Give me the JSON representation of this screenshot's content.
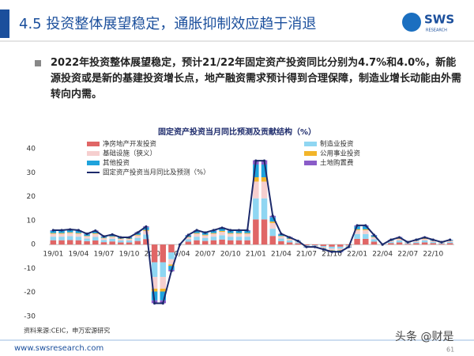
{
  "header": {
    "title": "4.5 投资整体展望稳定，通胀抑制效应趋于消退",
    "logo": "SWS",
    "logo_sub": "RESEARCH"
  },
  "bullet": "2022年投资整体展望稳定，预计21/22年固定资产投资同比分别为4.7%和4.0%，新能源投资或是新的基建投资增长点，地产融资需求预计得到合理保障，制造业增长动能由外需转向内需。",
  "source": "资料来源:CEIC，申万宏源研究",
  "footer": {
    "url": "www.swsresearch.com",
    "page": "61",
    "watermark": "头条 @财是"
  },
  "chart_data": {
    "type": "bar",
    "stacked": true,
    "title": "固定资产投资当月同比预测及贡献结构（%）",
    "categories": [
      "19/01",
      null,
      null,
      "19/04",
      null,
      null,
      "19/07",
      null,
      null,
      "19/10",
      null,
      null,
      "20/01",
      null,
      null,
      "20/04",
      null,
      null,
      "20/07",
      null,
      null,
      "20/10",
      null,
      null,
      "21/01",
      null,
      null,
      "21/04",
      null,
      null,
      "21/07",
      null,
      null,
      "21/10",
      null,
      null,
      "22/01",
      null,
      null,
      "22/04",
      null,
      null,
      "22/07",
      null,
      null,
      "22/10",
      null,
      null
    ],
    "ylim": [
      -30,
      40
    ],
    "yticks": [
      -30,
      -20,
      -10,
      0,
      10,
      20,
      30,
      40
    ],
    "grid": false,
    "series": [
      {
        "name": "净房地产开发投资",
        "color": "#e06666",
        "values": [
          1.8,
          1.8,
          1.9,
          1.8,
          1.4,
          1.7,
          1.0,
          1.3,
          0.9,
          0.9,
          1.5,
          2.3,
          -7.4,
          -7.4,
          -3.3,
          0,
          1.2,
          1.8,
          1.5,
          1.8,
          2.1,
          1.8,
          1.8,
          1.8,
          10.5,
          10.5,
          3.6,
          1.4,
          0.9,
          0.5,
          -0.3,
          -0.3,
          -0.6,
          -0.9,
          -0.9,
          -0.3,
          2.4,
          2.4,
          1.2,
          0,
          0.6,
          0.9,
          0.3,
          0.6,
          0.9,
          0.6,
          0.3,
          0.6
        ]
      },
      {
        "name": "制造业投资",
        "color": "#8fd6f2",
        "values": [
          1.5,
          1.5,
          1.6,
          1.5,
          1.1,
          1.5,
          0.9,
          1.1,
          0.8,
          0.8,
          1.3,
          1.9,
          -6.1,
          -6.1,
          -2.8,
          0,
          1,
          1.5,
          1.3,
          1.5,
          1.8,
          1.5,
          1.5,
          1.5,
          8.8,
          8.8,
          3,
          1.1,
          0.8,
          0.4,
          -0.3,
          -0.3,
          -0.5,
          -0.8,
          -0.8,
          -0.3,
          2,
          2,
          1,
          0,
          0.5,
          0.8,
          0.3,
          0.5,
          0.8,
          0.5,
          0.3,
          0.5
        ]
      },
      {
        "name": "基础设施（狭义）",
        "color": "#f6cfcf",
        "values": [
          1.2,
          1.2,
          1.3,
          1.2,
          0.9,
          1.2,
          0.7,
          0.8,
          0.6,
          0.6,
          1.0,
          1.5,
          -4.9,
          -4.9,
          -2.2,
          0,
          0.8,
          1.2,
          1,
          1.2,
          1.4,
          1.2,
          1.2,
          1.2,
          7,
          7,
          2.4,
          0.9,
          0.6,
          0.3,
          -0.2,
          -0.2,
          -0.4,
          -0.6,
          -0.6,
          -0.2,
          1.6,
          1.6,
          0.8,
          0,
          0.4,
          0.6,
          0.2,
          0.4,
          0.6,
          0.4,
          0.2,
          0.4
        ]
      },
      {
        "name": "公用事业投资",
        "color": "#f2b52a",
        "values": [
          0.3,
          0.3,
          0.3,
          0.3,
          0.2,
          0.3,
          0.2,
          0.2,
          0.2,
          0.2,
          0.3,
          0.4,
          -1.2,
          -1.2,
          -0.6,
          0,
          0.2,
          0.3,
          0.3,
          0.3,
          0.4,
          0.3,
          0.3,
          0.3,
          1.8,
          1.8,
          0.6,
          0.2,
          0.2,
          0.1,
          -0.1,
          -0.1,
          -0.1,
          -0.2,
          -0.2,
          -0.1,
          0.4,
          0.4,
          0.2,
          0,
          0.1,
          0.2,
          0.1,
          0.1,
          0.2,
          0.1,
          0.1,
          0.1
        ]
      },
      {
        "name": "其他投资",
        "color": "#1fa3dc",
        "values": [
          0.9,
          0.9,
          0.9,
          0.9,
          0.7,
          0.9,
          0.5,
          0.6,
          0.5,
          0.5,
          0.8,
          1.1,
          -3.7,
          -3.7,
          -1.7,
          0,
          0.6,
          0.9,
          0.8,
          0.9,
          1.1,
          0.9,
          0.9,
          0.9,
          5.3,
          5.3,
          1.8,
          0.7,
          0.5,
          0.2,
          -0.2,
          -0.2,
          -0.3,
          -0.5,
          -0.5,
          -0.2,
          1.2,
          1.2,
          0.6,
          0,
          0.3,
          0.5,
          0.2,
          0.3,
          0.5,
          0.3,
          0.2,
          0.3
        ]
      },
      {
        "name": "土地购置费",
        "color": "#8a5cc8",
        "values": [
          0.3,
          0.3,
          0.3,
          0.3,
          0.2,
          0.3,
          0.2,
          0.2,
          0.2,
          0.2,
          0.3,
          0.4,
          -1.2,
          -1.2,
          -0.6,
          0,
          0.2,
          0.3,
          0.3,
          0.3,
          0.4,
          0.3,
          0.3,
          0.3,
          1.8,
          1.8,
          0.6,
          0.2,
          0.2,
          0.1,
          -0.1,
          -0.1,
          -0.1,
          -0.2,
          -0.2,
          -0.1,
          0.4,
          0.4,
          0.2,
          0,
          0.1,
          0.2,
          0.1,
          0.1,
          0.2,
          0.1,
          0.1,
          0.1
        ]
      },
      {
        "name": "固定资产投资当月同比及预测（%）",
        "type": "line",
        "color": "#1c2a6b",
        "values": [
          6,
          6,
          6.3,
          6,
          4.5,
          5.8,
          3.4,
          4.2,
          3,
          3,
          5,
          7.5,
          -24.5,
          -24.5,
          -11,
          0,
          4,
          6,
          5,
          6,
          7,
          6,
          6,
          6,
          35,
          35,
          12,
          4.5,
          3,
          1.5,
          -1,
          -1,
          -2,
          -3,
          -3,
          -1,
          8,
          8,
          4,
          0,
          2,
          3,
          1,
          2,
          3,
          2,
          1,
          2
        ]
      }
    ]
  }
}
